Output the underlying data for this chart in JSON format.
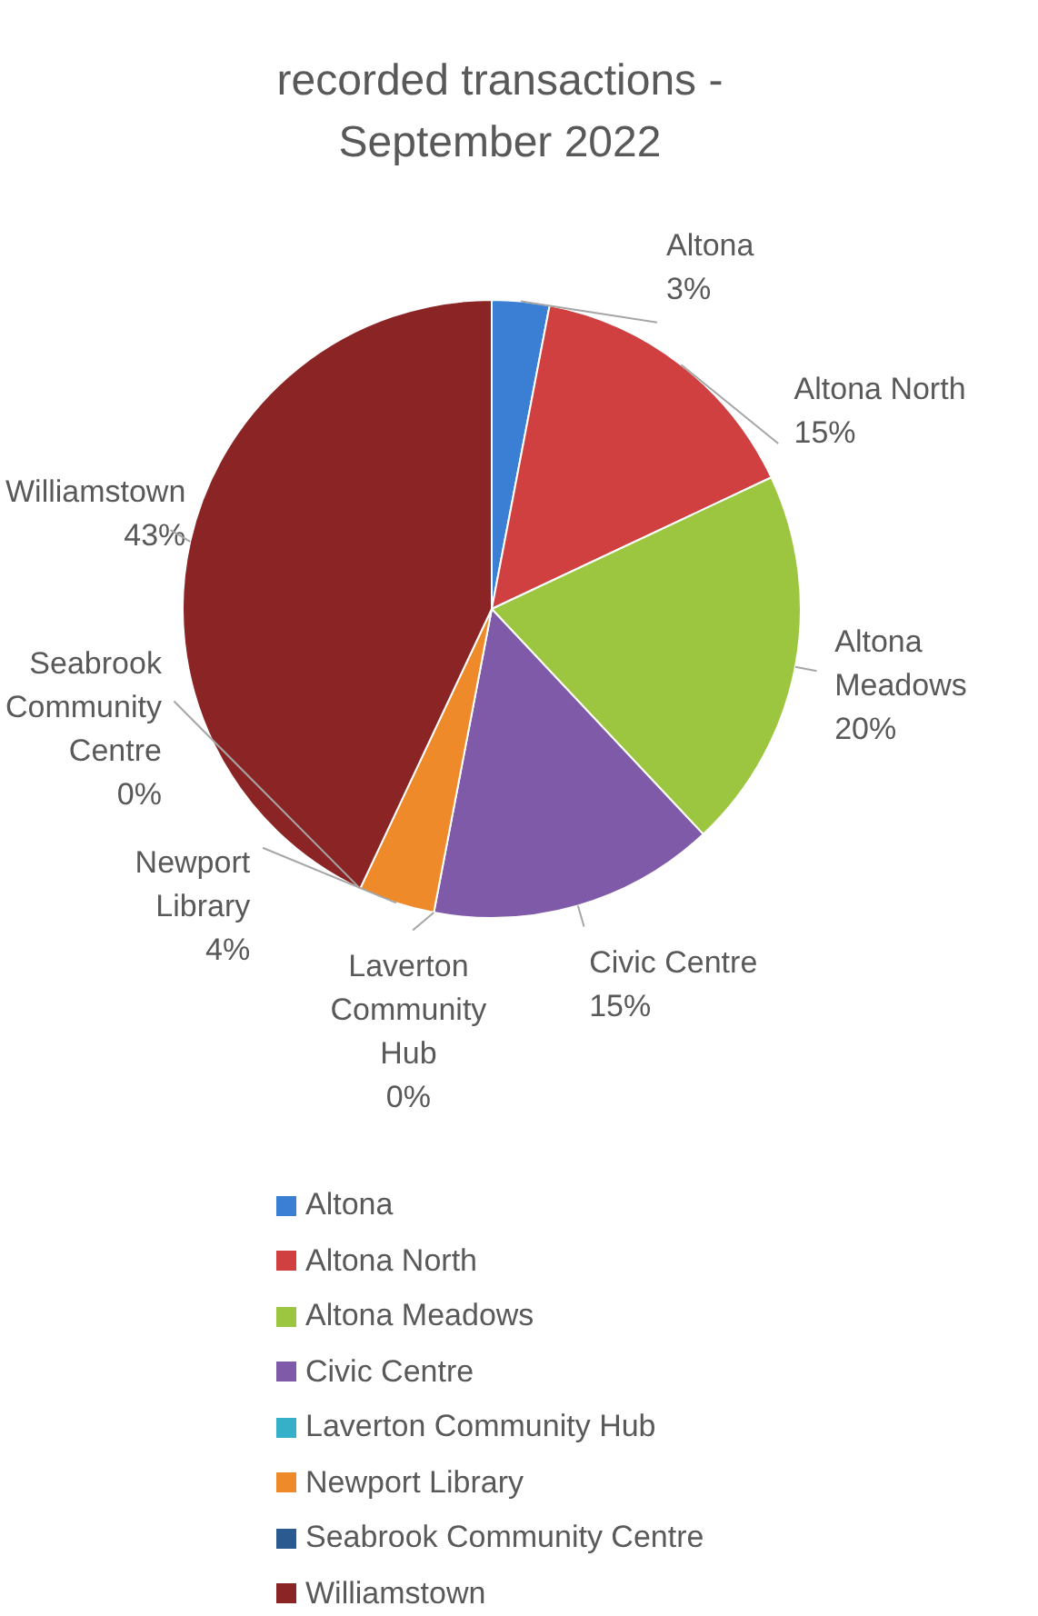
{
  "chart_data": {
    "type": "pie",
    "title": "recorded transactions - September 2022",
    "categories": [
      "Altona",
      "Altona North",
      "Altona Meadows",
      "Civic Centre",
      "Laverton Community Hub",
      "Newport Library",
      "Seabrook Community Centre",
      "Williamstown"
    ],
    "values": [
      3,
      15,
      20,
      15,
      0,
      4,
      0,
      43
    ],
    "value_labels": [
      "3%",
      "15%",
      "20%",
      "15%",
      "0%",
      "4%",
      "0%",
      "43%"
    ],
    "colors": [
      "#3b7fd4",
      "#d04040",
      "#9dc640",
      "#7f5aa8",
      "#36b0c8",
      "#ee8a2a",
      "#2a5a90",
      "#8b2525"
    ],
    "legend": "bottom"
  }
}
